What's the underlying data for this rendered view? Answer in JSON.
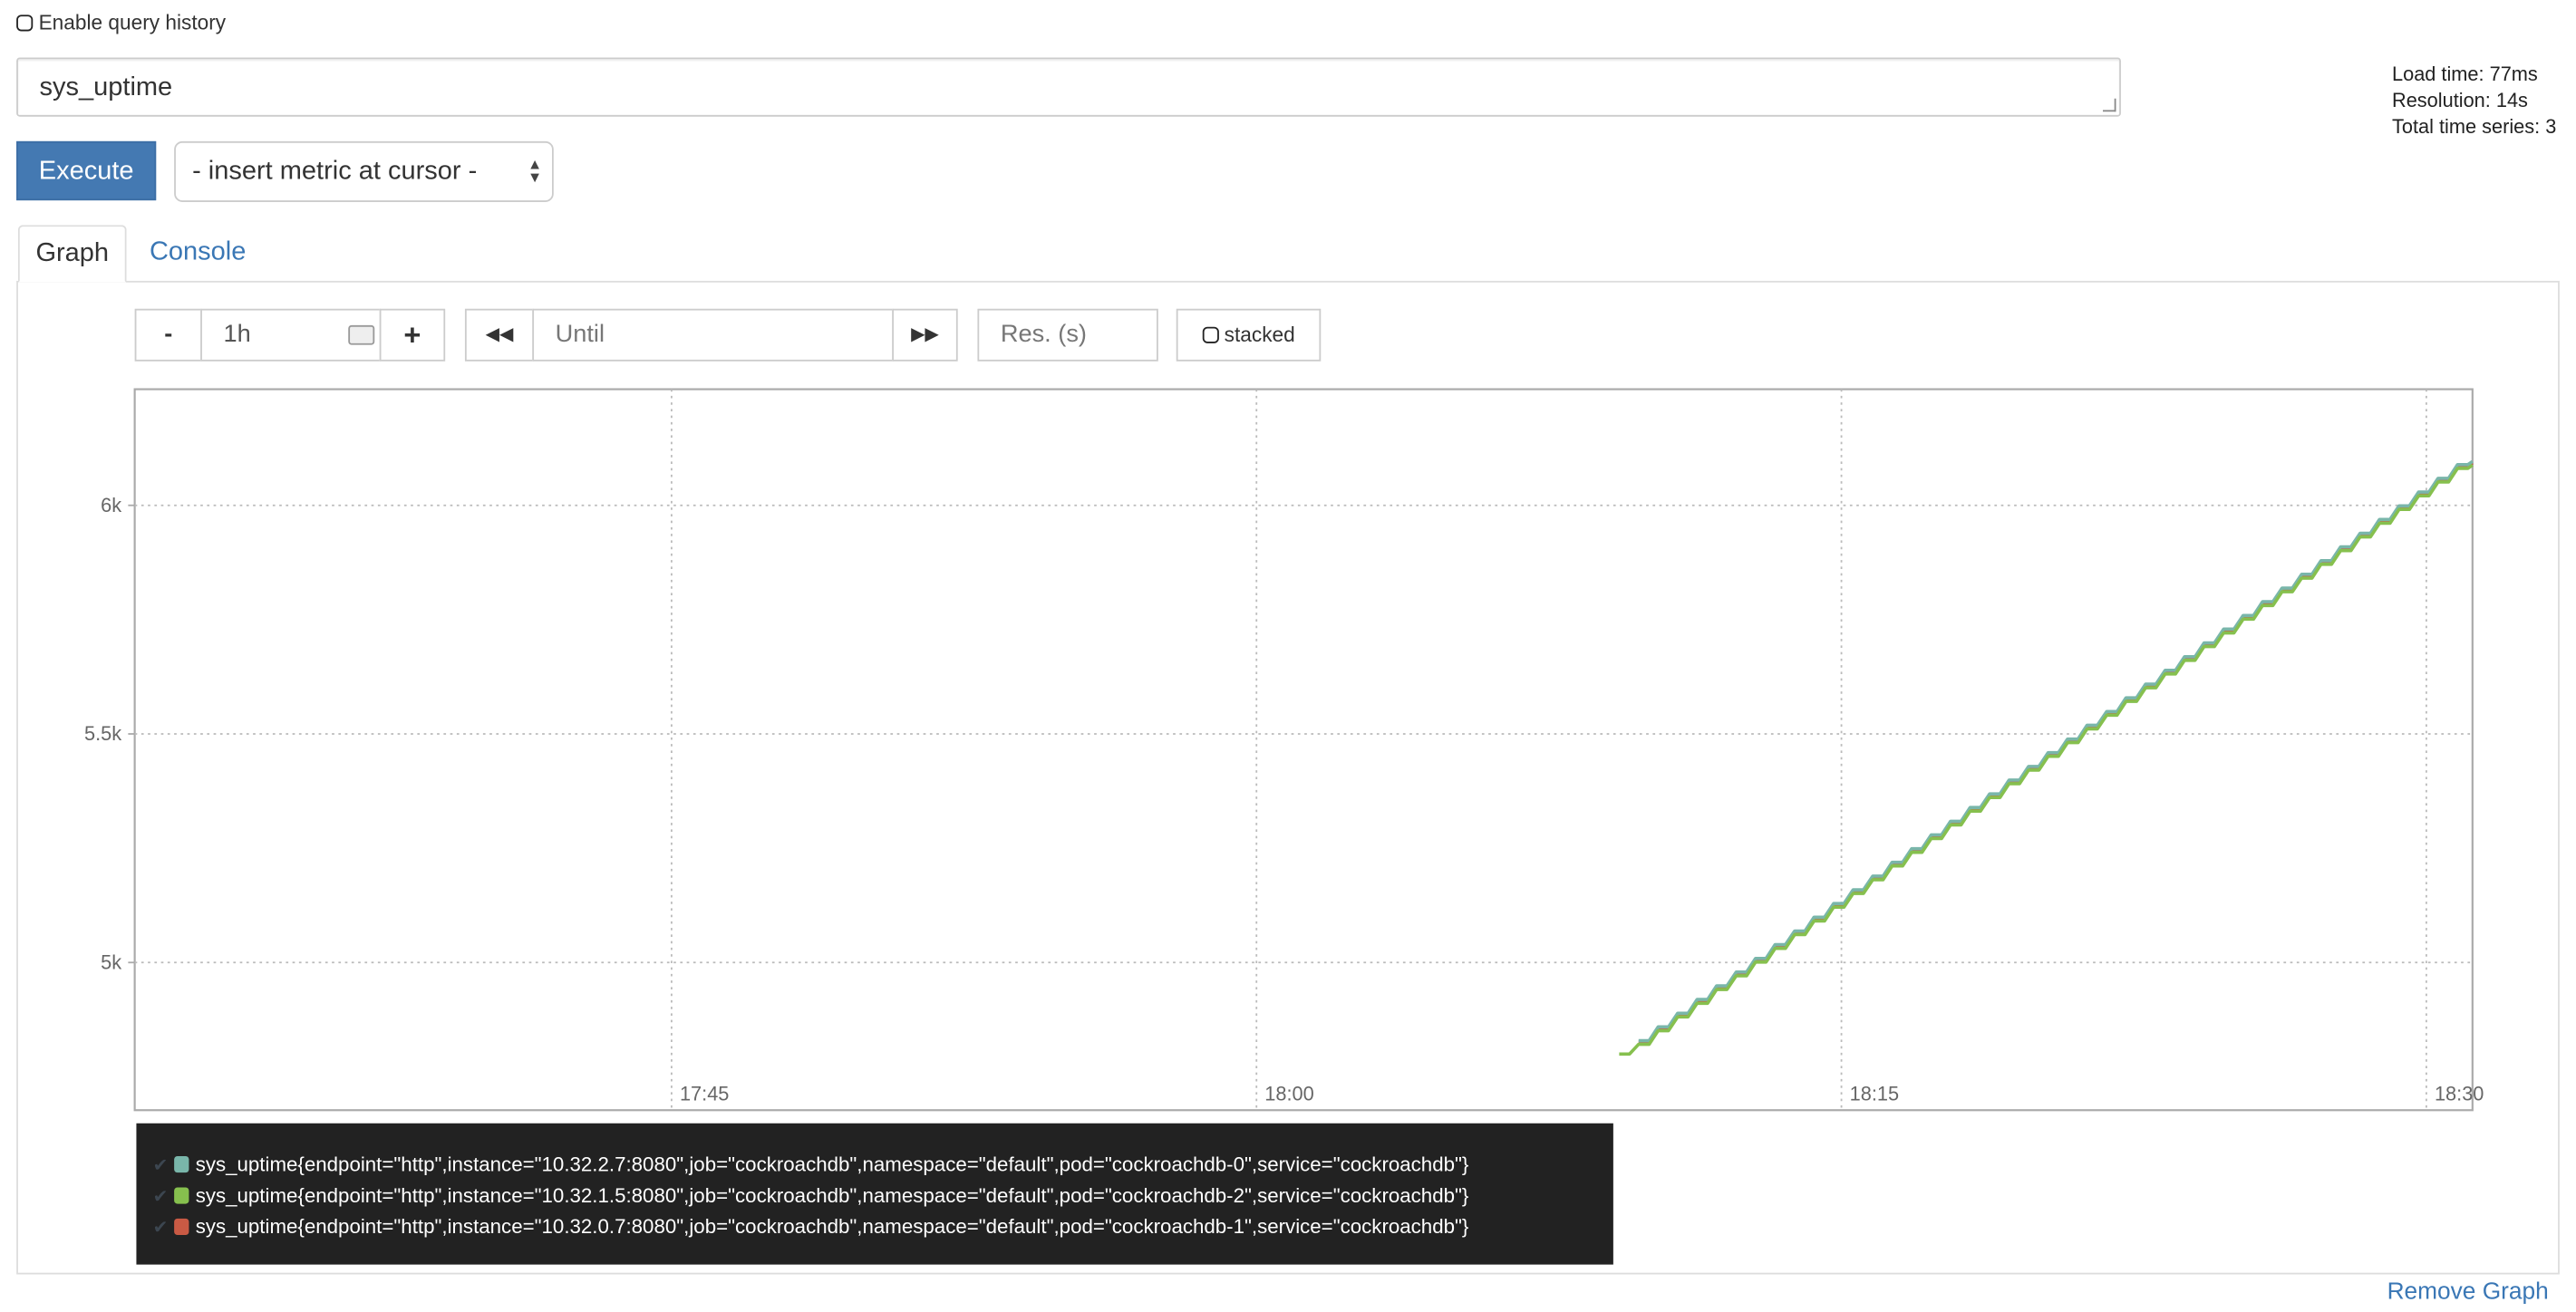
{
  "query_history": {
    "label": "Enable query history",
    "checked": false
  },
  "query": {
    "value": "sys_uptime"
  },
  "execute_label": "Execute",
  "metric_select": {
    "value": "- insert metric at cursor -"
  },
  "stats": {
    "load_time": "Load time: 77ms",
    "resolution": "Resolution: 14s",
    "total_series": "Total time series: 3"
  },
  "tabs": [
    {
      "label": "Graph",
      "active": true
    },
    {
      "label": "Console",
      "active": false
    }
  ],
  "controls": {
    "minus": "-",
    "range": "1h",
    "plus": "+",
    "back": "⏪",
    "until_placeholder": "Until",
    "forward": "⏩",
    "res_placeholder": "Res. (s)",
    "stacked_label": "stacked"
  },
  "remove_graph": "Remove Graph",
  "chart_data": {
    "type": "line",
    "xlim": [
      "17:31:14",
      "18:31:11"
    ],
    "ylim": [
      4677,
      6254
    ],
    "x_ticks": [
      "17:45",
      "18:00",
      "18:15",
      "18:30"
    ],
    "y_ticks": [
      {
        "value": 5000,
        "label": "5k"
      },
      {
        "value": 5500,
        "label": "5.5k"
      },
      {
        "value": 6000,
        "label": "6k"
      }
    ],
    "grid": true,
    "x": [
      "18:09:18",
      "18:09:48",
      "18:10:18",
      "18:10:48",
      "18:11:18",
      "18:11:48",
      "18:12:18",
      "18:12:48",
      "18:13:18",
      "18:13:48",
      "18:14:18",
      "18:14:48",
      "18:15:18",
      "18:15:48",
      "18:16:18",
      "18:16:48",
      "18:17:18",
      "18:17:48",
      "18:18:18",
      "18:18:48",
      "18:19:18",
      "18:19:48",
      "18:20:18",
      "18:20:48",
      "18:21:18",
      "18:21:48",
      "18:22:18",
      "18:22:48",
      "18:23:18",
      "18:23:48",
      "18:24:18",
      "18:24:48",
      "18:25:18",
      "18:25:48",
      "18:26:18",
      "18:26:48",
      "18:27:18",
      "18:27:48",
      "18:28:18",
      "18:28:48",
      "18:29:18",
      "18:29:48",
      "18:30:18",
      "18:30:48"
    ],
    "series": [
      {
        "name": "sys_uptime{endpoint=\"http\",instance=\"10.32.2.7:8080\",job=\"cockroachdb\",namespace=\"default\",pod=\"cockroachdb-0\",service=\"cockroachdb\"}",
        "color": "#79b6aa",
        "values": [
          null,
          4829,
          4859,
          4889,
          4919,
          4949,
          4979,
          5009,
          5039,
          5069,
          5099,
          5129,
          5159,
          5189,
          5219,
          5249,
          5279,
          5309,
          5339,
          5369,
          5399,
          5429,
          5459,
          5489,
          5519,
          5549,
          5579,
          5609,
          5639,
          5669,
          5699,
          5729,
          5759,
          5789,
          5819,
          5849,
          5879,
          5909,
          5939,
          5969,
          5999,
          6029,
          6059,
          6089
        ]
      },
      {
        "name": "sys_uptime{endpoint=\"http\",instance=\"10.32.1.5:8080\",job=\"cockroachdb\",namespace=\"default\",pod=\"cockroachdb-2\",service=\"cockroachdb\"}",
        "color": "#86c04e",
        "values": [
          4800,
          4821,
          4851,
          4881,
          4911,
          4941,
          4971,
          5001,
          5031,
          5061,
          5091,
          5121,
          5151,
          5181,
          5211,
          5241,
          5271,
          5301,
          5331,
          5361,
          5391,
          5421,
          5451,
          5481,
          5511,
          5541,
          5571,
          5601,
          5631,
          5661,
          5691,
          5721,
          5751,
          5781,
          5811,
          5841,
          5871,
          5901,
          5931,
          5961,
          5991,
          6021,
          6051,
          6081
        ]
      },
      {
        "name": "sys_uptime{endpoint=\"http\",instance=\"10.32.0.7:8080\",job=\"cockroachdb\",namespace=\"default\",pod=\"cockroachdb-1\",service=\"cockroachdb\"}",
        "color": "#c95a44",
        "values": [
          null,
          4826,
          4856,
          4886,
          4916,
          4946,
          4976,
          5006,
          5036,
          5066,
          5096,
          5126,
          5156,
          5186,
          5216,
          5246,
          5276,
          5306,
          5336,
          5366,
          5396,
          5426,
          5456,
          5486,
          5516,
          5546,
          5576,
          5606,
          5636,
          5666,
          5696,
          5726,
          5756,
          5786,
          5816,
          5846,
          5876,
          5906,
          5936,
          5966,
          5996,
          6026,
          6056,
          6086
        ]
      }
    ]
  }
}
